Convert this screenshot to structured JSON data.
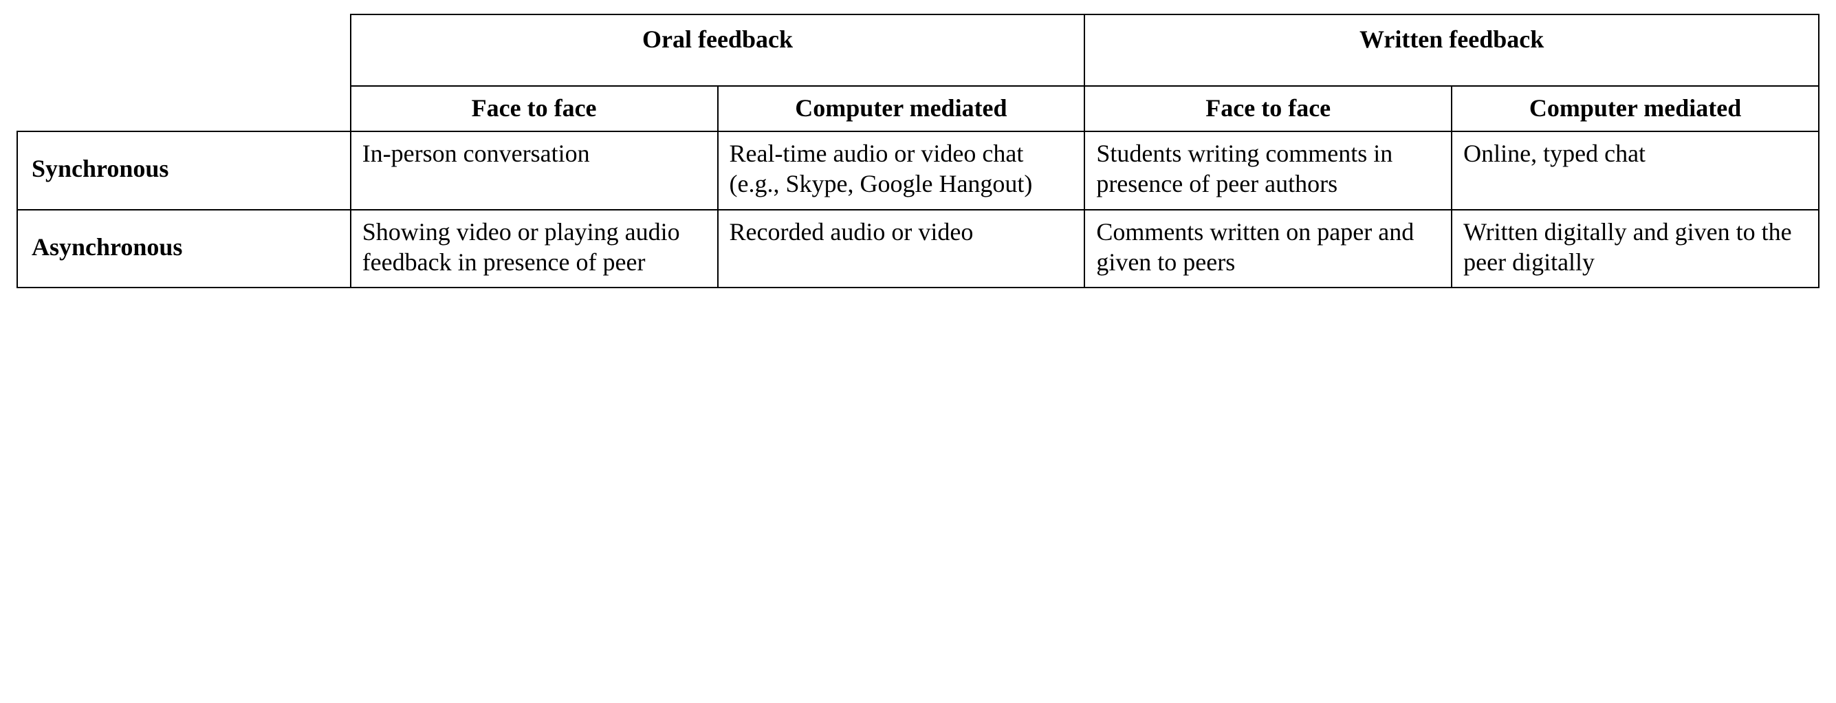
{
  "table": {
    "type": "table",
    "background_color": "#ffffff",
    "border_color": "#000000",
    "text_color": "#000000",
    "font_family": "Times New Roman",
    "header_fontsize_pt": 27,
    "body_fontsize_pt": 27,
    "top_headers": [
      "Oral feedback",
      "Written feedback"
    ],
    "sub_headers": [
      "Face to face",
      "Computer mediated",
      "Face to face",
      "Computer mediated"
    ],
    "row_headers": [
      "Synchronous",
      "Asynchronous"
    ],
    "rows": [
      [
        "In-person conversation",
        "Real-time audio or video chat (e.g., Skype, Google Hangout)",
        "Students writing comments in presence of peer authors",
        "Online, typed chat"
      ],
      [
        "Showing video or playing audio feedback in presence of peer",
        "Recorded audio or video",
        "Comments written on paper and given to peers",
        "Written digitally and given to the peer digitally"
      ]
    ],
    "column_widths_pct": [
      18.5,
      20.375,
      20.375,
      20.375,
      20.375
    ]
  }
}
